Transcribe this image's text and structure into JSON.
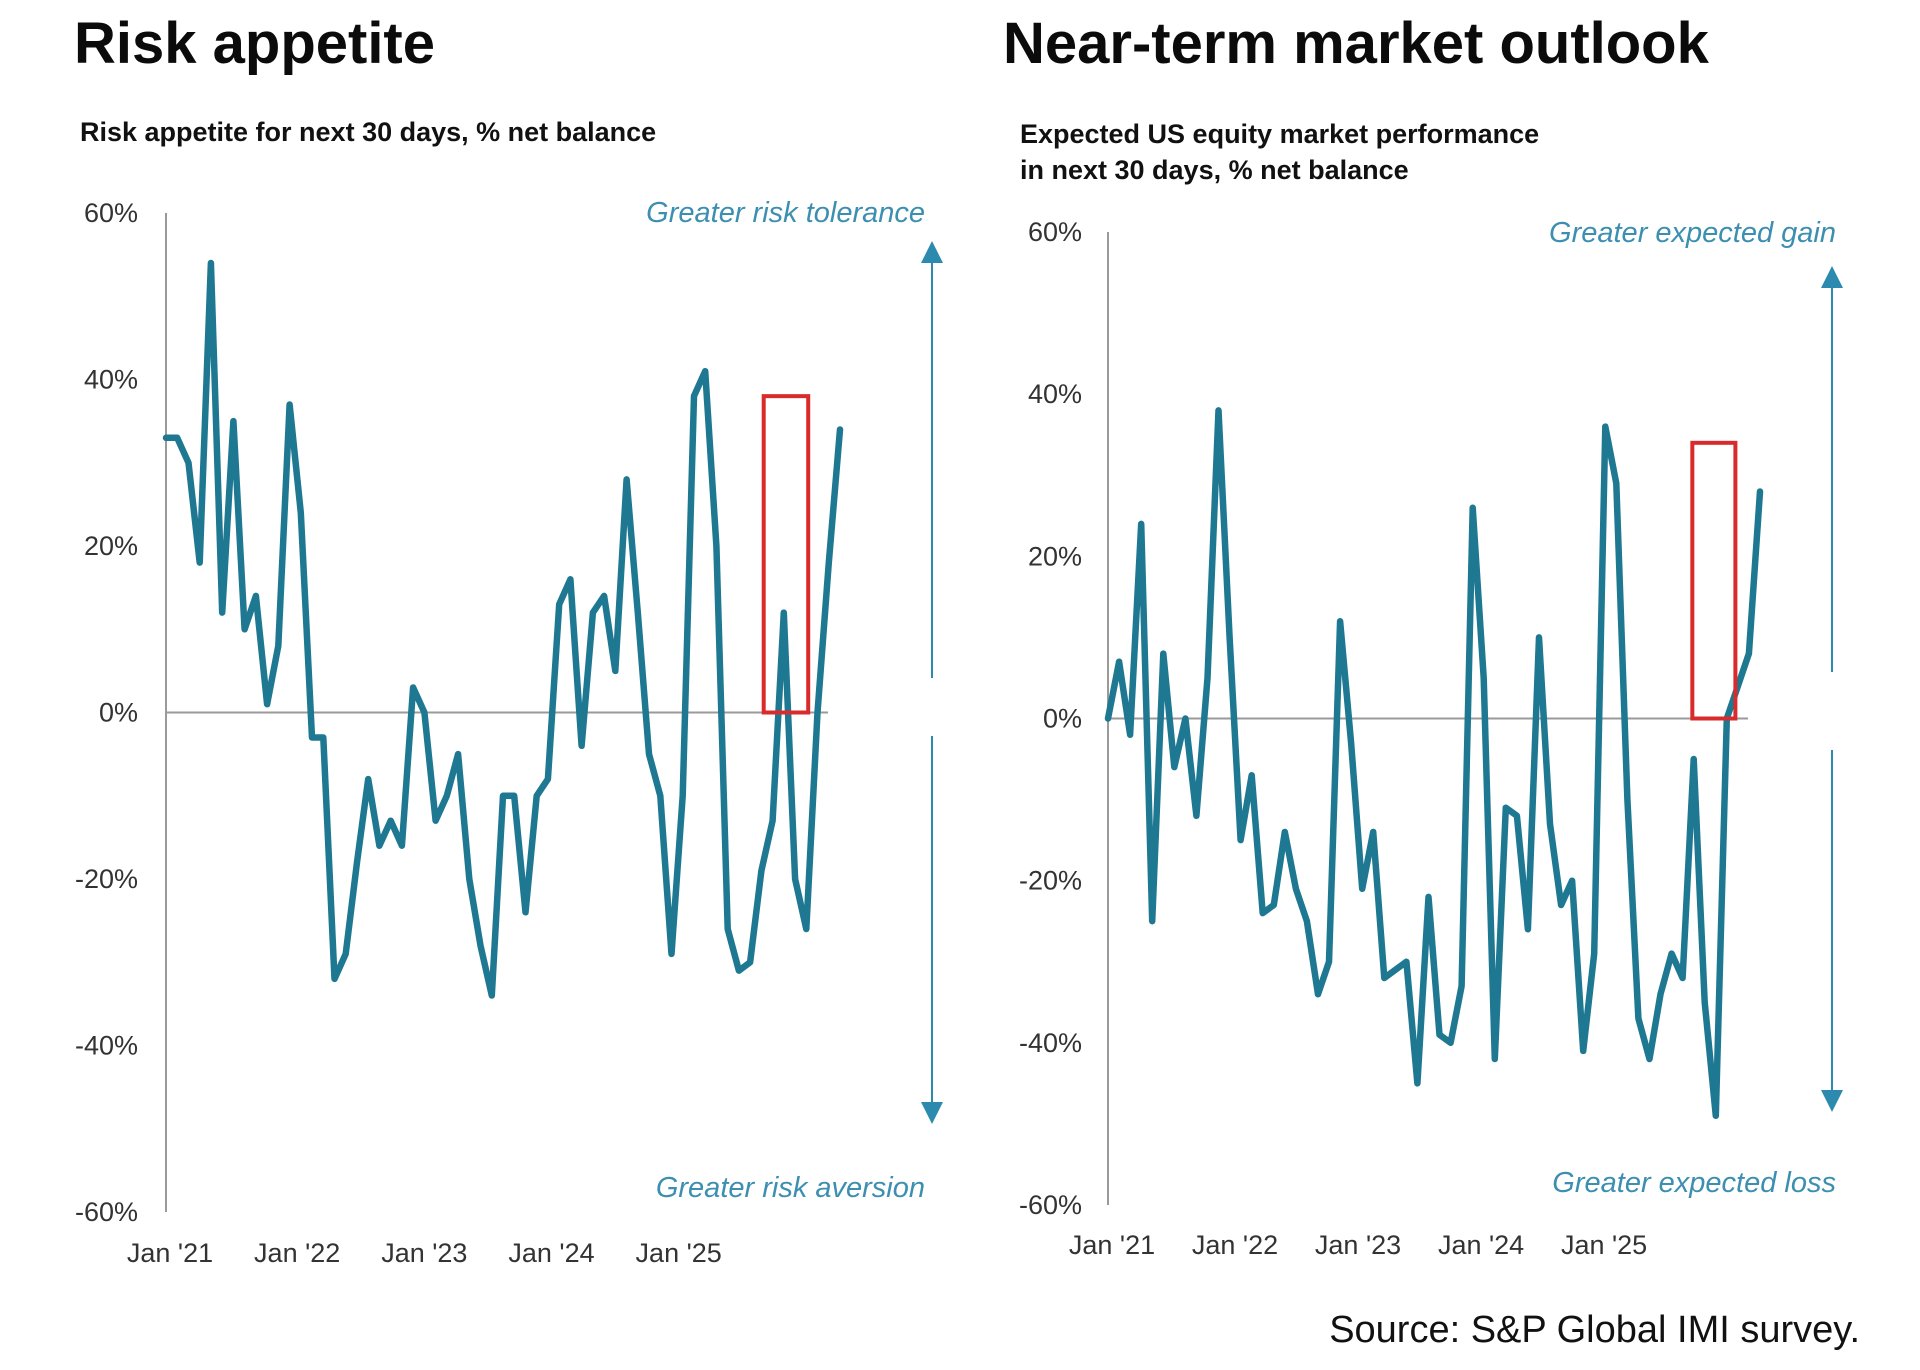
{
  "source": "Source: S&P Global IMI survey.",
  "colors": {
    "series": "#1f7892",
    "axis": "#9a9a9a",
    "highlight": "#d92b2b",
    "annotation": "#3c8fb0",
    "arrow": "#2b8aad"
  },
  "chart_data": [
    {
      "type": "line",
      "title": "Risk appetite",
      "subtitle": [
        "Risk appetite for next 30 days, % net balance"
      ],
      "ylim": [
        -60,
        60
      ],
      "yticks": [
        60,
        40,
        20,
        0,
        -20,
        -40,
        -60
      ],
      "ytick_labels": [
        "60%",
        "40%",
        "20%",
        "0%",
        "-20%",
        "-40%",
        "-60%"
      ],
      "xlim": [
        0,
        53
      ],
      "xticks": [
        0,
        10,
        20,
        30,
        40
      ],
      "xtick_labels": [
        "Jan '21",
        "Jan '22",
        "Jan '23",
        "Jan '24",
        "Jan '25"
      ],
      "annotation_top": "Greater risk tolerance",
      "annotation_bottom": "Greater risk aversion",
      "highlight": {
        "x_start": 47,
        "x_end": 50.5,
        "y_start": 0,
        "y_end": 38
      },
      "series": [
        {
          "name": "Risk appetite",
          "values": [
            33,
            33,
            30,
            18,
            54,
            12,
            35,
            10,
            14,
            1,
            8,
            37,
            24,
            -3,
            -3,
            -32,
            -29,
            -18,
            -8,
            -16,
            -13,
            -16,
            3,
            0,
            -13,
            -10,
            -5,
            -20,
            -28,
            -34,
            -10,
            -10,
            -24,
            -10,
            -8,
            13,
            16,
            -4,
            12,
            14,
            5,
            28,
            12,
            -5,
            -10,
            -29,
            -10,
            38,
            41,
            20,
            -26,
            -31,
            -30,
            -19,
            -13,
            12,
            -20,
            -26,
            0,
            18,
            34
          ]
        }
      ]
    },
    {
      "type": "line",
      "title": "Near-term market outlook",
      "subtitle": [
        "Expected US equity market performance",
        "in next 30 days, % net balance"
      ],
      "ylim": [
        -60,
        60
      ],
      "yticks": [
        60,
        40,
        20,
        0,
        -20,
        -40,
        -60
      ],
      "ytick_labels": [
        "60%",
        "40%",
        "20%",
        "0%",
        "-20%",
        "-40%",
        "-60%"
      ],
      "xlim": [
        0,
        53
      ],
      "xticks": [
        0,
        10,
        20,
        30,
        40
      ],
      "xtick_labels": [
        "Jan '21",
        "Jan '22",
        "Jan '23",
        "Jan '24",
        "Jan '25"
      ],
      "annotation_top": "Greater expected gain",
      "annotation_bottom": "Greater  expected loss",
      "highlight": {
        "x_start": 47.5,
        "x_end": 51,
        "y_start": 0,
        "y_end": 34
      },
      "series": [
        {
          "name": "Expected US equity market performance",
          "values": [
            0,
            7,
            -2,
            24,
            -25,
            8,
            -6,
            0,
            -12,
            5,
            38,
            10,
            -15,
            -7,
            -24,
            -23,
            -14,
            -21,
            -25,
            -34,
            -30,
            12,
            -3,
            -21,
            -14,
            -32,
            -31,
            -30,
            -45,
            -22,
            -39,
            -40,
            -33,
            26,
            5,
            -42,
            -11,
            -12,
            -26,
            10,
            -13,
            -23,
            -20,
            -41,
            -29,
            36,
            29,
            -10,
            -37,
            -42,
            -34,
            -29,
            -32,
            -5,
            -35,
            -49,
            0,
            4,
            8,
            28
          ]
        }
      ]
    }
  ]
}
